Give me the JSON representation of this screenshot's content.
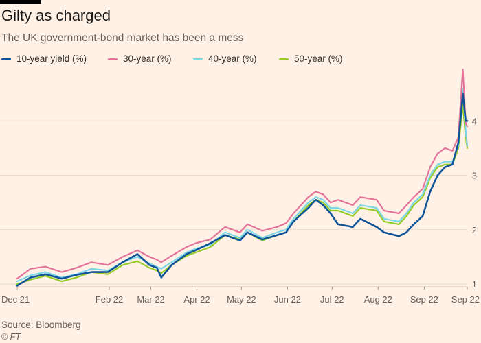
{
  "header": {
    "title": "Gilty as charged",
    "subtitle": "The UK government-bond market has been a mess"
  },
  "footer": {
    "source": "Source: Bloomberg",
    "credit": "© FT"
  },
  "colors": {
    "background": "#fff1e5",
    "grid": "#e6d9ce",
    "axis_text": "#66605c"
  },
  "chart_data": {
    "type": "line",
    "title": "Gilty as charged",
    "subtitle": "The UK government-bond market has been a mess",
    "x_tick_labels": [
      "Dec 21",
      "Feb 22",
      "Mar 22",
      "Apr 22",
      "May 22",
      "Jun 22",
      "Jul 22",
      "Aug 22",
      "Sep 22",
      "Sep 22"
    ],
    "x_tick_dates": [
      "2021-12-01",
      "2022-02-01",
      "2022-03-01",
      "2022-04-01",
      "2022-05-01",
      "2022-06-01",
      "2022-07-01",
      "2022-08-01",
      "2022-09-01",
      "2022-09-30"
    ],
    "y_ticks": [
      1,
      2,
      3,
      4
    ],
    "ylim": [
      0.95,
      4.95
    ],
    "grid": true,
    "legend_position": "top-left",
    "series": [
      {
        "name": "10-year yield (%)",
        "color": "#0f5499",
        "points": [
          [
            "2021-12-01",
            0.97
          ],
          [
            "2021-12-10",
            1.12
          ],
          [
            "2021-12-20",
            1.18
          ],
          [
            "2021-12-31",
            1.1
          ],
          [
            "2022-01-10",
            1.17
          ],
          [
            "2022-01-20",
            1.22
          ],
          [
            "2022-01-31",
            1.22
          ],
          [
            "2022-02-10",
            1.4
          ],
          [
            "2022-02-20",
            1.55
          ],
          [
            "2022-02-28",
            1.35
          ],
          [
            "2022-03-05",
            1.3
          ],
          [
            "2022-03-08",
            1.12
          ],
          [
            "2022-03-15",
            1.35
          ],
          [
            "2022-03-25",
            1.55
          ],
          [
            "2022-03-31",
            1.62
          ],
          [
            "2022-04-10",
            1.75
          ],
          [
            "2022-04-20",
            1.9
          ],
          [
            "2022-04-30",
            1.8
          ],
          [
            "2022-05-05",
            1.95
          ],
          [
            "2022-05-15",
            1.82
          ],
          [
            "2022-05-25",
            1.9
          ],
          [
            "2022-05-31",
            1.95
          ],
          [
            "2022-06-05",
            2.15
          ],
          [
            "2022-06-15",
            2.4
          ],
          [
            "2022-06-20",
            2.55
          ],
          [
            "2022-06-25",
            2.45
          ],
          [
            "2022-06-30",
            2.3
          ],
          [
            "2022-07-05",
            2.1
          ],
          [
            "2022-07-15",
            2.05
          ],
          [
            "2022-07-20",
            2.2
          ],
          [
            "2022-07-31",
            2.05
          ],
          [
            "2022-08-05",
            1.95
          ],
          [
            "2022-08-15",
            1.88
          ],
          [
            "2022-08-20",
            1.95
          ],
          [
            "2022-08-25",
            2.1
          ],
          [
            "2022-08-31",
            2.25
          ],
          [
            "2022-09-05",
            2.7
          ],
          [
            "2022-09-10",
            3.0
          ],
          [
            "2022-09-15",
            3.15
          ],
          [
            "2022-09-20",
            3.2
          ],
          [
            "2022-09-24",
            3.6
          ],
          [
            "2022-09-27",
            4.5
          ],
          [
            "2022-09-29",
            4.0
          ],
          [
            "2022-09-30",
            4.0
          ]
        ]
      },
      {
        "name": "30-year (%)",
        "color": "#e3739a",
        "points": [
          [
            "2021-12-01",
            1.1
          ],
          [
            "2021-12-10",
            1.28
          ],
          [
            "2021-12-20",
            1.32
          ],
          [
            "2021-12-31",
            1.22
          ],
          [
            "2022-01-10",
            1.3
          ],
          [
            "2022-01-20",
            1.4
          ],
          [
            "2022-01-31",
            1.35
          ],
          [
            "2022-02-10",
            1.5
          ],
          [
            "2022-02-20",
            1.62
          ],
          [
            "2022-02-28",
            1.5
          ],
          [
            "2022-03-05",
            1.45
          ],
          [
            "2022-03-08",
            1.4
          ],
          [
            "2022-03-15",
            1.52
          ],
          [
            "2022-03-25",
            1.68
          ],
          [
            "2022-03-31",
            1.75
          ],
          [
            "2022-04-10",
            1.82
          ],
          [
            "2022-04-20",
            2.05
          ],
          [
            "2022-04-30",
            1.95
          ],
          [
            "2022-05-05",
            2.1
          ],
          [
            "2022-05-15",
            1.98
          ],
          [
            "2022-05-25",
            2.05
          ],
          [
            "2022-05-31",
            2.12
          ],
          [
            "2022-06-05",
            2.3
          ],
          [
            "2022-06-15",
            2.6
          ],
          [
            "2022-06-20",
            2.7
          ],
          [
            "2022-06-25",
            2.65
          ],
          [
            "2022-06-30",
            2.5
          ],
          [
            "2022-07-05",
            2.55
          ],
          [
            "2022-07-15",
            2.45
          ],
          [
            "2022-07-20",
            2.6
          ],
          [
            "2022-07-31",
            2.55
          ],
          [
            "2022-08-05",
            2.35
          ],
          [
            "2022-08-15",
            2.3
          ],
          [
            "2022-08-20",
            2.45
          ],
          [
            "2022-08-25",
            2.6
          ],
          [
            "2022-08-31",
            2.75
          ],
          [
            "2022-09-05",
            3.15
          ],
          [
            "2022-09-10",
            3.4
          ],
          [
            "2022-09-15",
            3.5
          ],
          [
            "2022-09-20",
            3.45
          ],
          [
            "2022-09-24",
            3.7
          ],
          [
            "2022-09-27",
            4.95
          ],
          [
            "2022-09-29",
            3.95
          ],
          [
            "2022-09-30",
            3.9
          ]
        ]
      },
      {
        "name": "40-year (%)",
        "color": "#7dd6e6",
        "points": [
          [
            "2021-12-01",
            1.05
          ],
          [
            "2021-12-10",
            1.16
          ],
          [
            "2021-12-20",
            1.22
          ],
          [
            "2021-12-31",
            1.12
          ],
          [
            "2022-01-10",
            1.18
          ],
          [
            "2022-01-20",
            1.28
          ],
          [
            "2022-01-31",
            1.25
          ],
          [
            "2022-02-10",
            1.4
          ],
          [
            "2022-02-20",
            1.5
          ],
          [
            "2022-02-28",
            1.38
          ],
          [
            "2022-03-05",
            1.32
          ],
          [
            "2022-03-08",
            1.28
          ],
          [
            "2022-03-15",
            1.4
          ],
          [
            "2022-03-25",
            1.58
          ],
          [
            "2022-03-31",
            1.65
          ],
          [
            "2022-04-10",
            1.72
          ],
          [
            "2022-04-20",
            1.95
          ],
          [
            "2022-04-30",
            1.85
          ],
          [
            "2022-05-05",
            2.0
          ],
          [
            "2022-05-15",
            1.85
          ],
          [
            "2022-05-25",
            1.95
          ],
          [
            "2022-05-31",
            2.0
          ],
          [
            "2022-06-05",
            2.2
          ],
          [
            "2022-06-15",
            2.5
          ],
          [
            "2022-06-20",
            2.6
          ],
          [
            "2022-06-25",
            2.55
          ],
          [
            "2022-06-30",
            2.4
          ],
          [
            "2022-07-05",
            2.4
          ],
          [
            "2022-07-15",
            2.3
          ],
          [
            "2022-07-20",
            2.45
          ],
          [
            "2022-07-31",
            2.4
          ],
          [
            "2022-08-05",
            2.2
          ],
          [
            "2022-08-15",
            2.15
          ],
          [
            "2022-08-20",
            2.3
          ],
          [
            "2022-08-25",
            2.5
          ],
          [
            "2022-08-31",
            2.65
          ],
          [
            "2022-09-05",
            3.0
          ],
          [
            "2022-09-10",
            3.2
          ],
          [
            "2022-09-15",
            3.25
          ],
          [
            "2022-09-20",
            3.25
          ],
          [
            "2022-09-24",
            3.55
          ],
          [
            "2022-09-27",
            4.6
          ],
          [
            "2022-09-29",
            3.8
          ],
          [
            "2022-09-30",
            3.55
          ]
        ]
      },
      {
        "name": "50-year (%)",
        "color": "#96cc28",
        "points": [
          [
            "2021-12-01",
            1.0
          ],
          [
            "2021-12-10",
            1.08
          ],
          [
            "2021-12-20",
            1.15
          ],
          [
            "2021-12-31",
            1.05
          ],
          [
            "2022-01-10",
            1.12
          ],
          [
            "2022-01-20",
            1.22
          ],
          [
            "2022-01-31",
            1.18
          ],
          [
            "2022-02-10",
            1.35
          ],
          [
            "2022-02-20",
            1.42
          ],
          [
            "2022-02-28",
            1.3
          ],
          [
            "2022-03-05",
            1.25
          ],
          [
            "2022-03-08",
            1.2
          ],
          [
            "2022-03-15",
            1.35
          ],
          [
            "2022-03-25",
            1.52
          ],
          [
            "2022-03-31",
            1.58
          ],
          [
            "2022-04-10",
            1.68
          ],
          [
            "2022-04-20",
            1.9
          ],
          [
            "2022-04-30",
            1.82
          ],
          [
            "2022-05-05",
            1.95
          ],
          [
            "2022-05-15",
            1.8
          ],
          [
            "2022-05-25",
            1.9
          ],
          [
            "2022-05-31",
            1.95
          ],
          [
            "2022-06-05",
            2.15
          ],
          [
            "2022-06-15",
            2.45
          ],
          [
            "2022-06-20",
            2.55
          ],
          [
            "2022-06-25",
            2.5
          ],
          [
            "2022-06-30",
            2.35
          ],
          [
            "2022-07-05",
            2.35
          ],
          [
            "2022-07-15",
            2.25
          ],
          [
            "2022-07-20",
            2.4
          ],
          [
            "2022-07-31",
            2.35
          ],
          [
            "2022-08-05",
            2.15
          ],
          [
            "2022-08-15",
            2.1
          ],
          [
            "2022-08-20",
            2.25
          ],
          [
            "2022-08-25",
            2.45
          ],
          [
            "2022-08-31",
            2.6
          ],
          [
            "2022-09-05",
            2.95
          ],
          [
            "2022-09-10",
            3.15
          ],
          [
            "2022-09-15",
            3.2
          ],
          [
            "2022-09-20",
            3.2
          ],
          [
            "2022-09-24",
            3.5
          ],
          [
            "2022-09-27",
            4.3
          ],
          [
            "2022-09-29",
            3.7
          ],
          [
            "2022-09-30",
            3.5
          ]
        ]
      }
    ]
  }
}
